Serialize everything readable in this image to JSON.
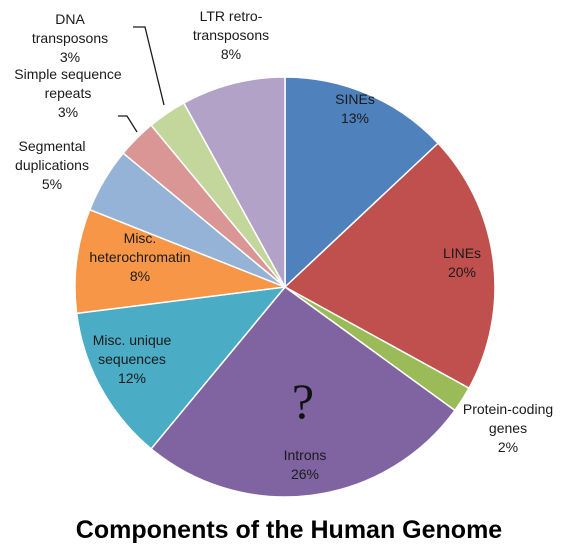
{
  "chart_data": {
    "type": "pie",
    "title": "Components of the Human Genome",
    "annotation": "?",
    "slices": [
      {
        "label": "SINEs",
        "value": 13,
        "value_label": "13%",
        "color": "#4f81bd"
      },
      {
        "label": "LINEs",
        "value": 20,
        "value_label": "20%",
        "color": "#c0504d"
      },
      {
        "label": "Protein-coding genes",
        "value": 2,
        "value_label": "2%",
        "color": "#9bbb59"
      },
      {
        "label": "Introns",
        "value": 26,
        "value_label": "26%",
        "color": "#8064a2"
      },
      {
        "label": "Misc. unique sequences",
        "value": 12,
        "value_label": "12%",
        "color": "#4bacc6"
      },
      {
        "label": "Misc. heterochromatin",
        "value": 8,
        "value_label": "8%",
        "color": "#f79646"
      },
      {
        "label": "Segmental duplications",
        "value": 5,
        "value_label": "5%",
        "color": "#95b3d7"
      },
      {
        "label": "Simple sequence repeats",
        "value": 3,
        "value_label": "3%",
        "color": "#da9694"
      },
      {
        "label": "DNA transposons",
        "value": 3,
        "value_label": "3%",
        "color": "#c3d69b"
      },
      {
        "label": "LTR retro-transposons",
        "value": 8,
        "value_label": "8%",
        "color": "#b2a2c7"
      }
    ]
  }
}
